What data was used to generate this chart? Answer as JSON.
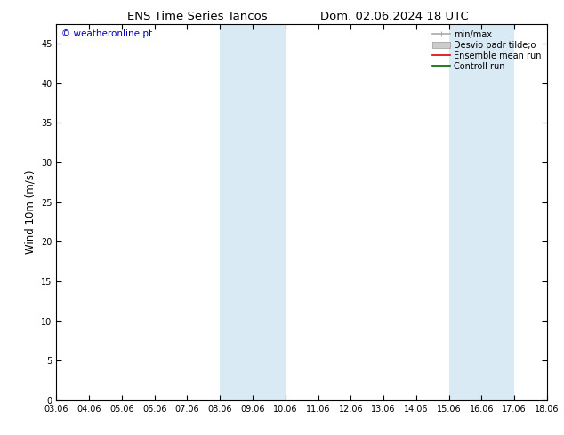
{
  "title_left": "ENS Time Series Tancos",
  "title_right": "Dom. 02.06.2024 18 UTC",
  "watermark": "© weatheronline.pt",
  "ylabel": "Wind 10m (m/s)",
  "xticks": [
    "03.06",
    "04.06",
    "05.06",
    "06.06",
    "07.06",
    "08.06",
    "09.06",
    "10.06",
    "11.06",
    "12.06",
    "13.06",
    "14.06",
    "15.06",
    "16.06",
    "17.06",
    "18.06"
  ],
  "yticks": [
    0,
    5,
    10,
    15,
    20,
    25,
    30,
    35,
    40,
    45
  ],
  "ymin": 0,
  "ymax": 47.5,
  "shade_bands": [
    {
      "xstart": 5,
      "xend": 7
    },
    {
      "xstart": 12,
      "xend": 14
    }
  ],
  "shade_color": "#daeaf5",
  "background_color": "#ffffff",
  "legend_items": [
    {
      "label": "min/max",
      "color": "#aaaaaa",
      "lw": 1.2,
      "style": "minmax"
    },
    {
      "label": "Desvio padr tilde;o",
      "color": "#cccccc",
      "style": "fill"
    },
    {
      "label": "Ensemble mean run",
      "color": "#dd0000",
      "lw": 1.2,
      "style": "line"
    },
    {
      "label": "Controll run",
      "color": "#006600",
      "lw": 1.2,
      "style": "line"
    }
  ],
  "title_fontsize": 9.5,
  "tick_fontsize": 7,
  "ylabel_fontsize": 8.5,
  "watermark_color": "#0000bb",
  "watermark_fontsize": 7.5,
  "legend_fontsize": 7
}
